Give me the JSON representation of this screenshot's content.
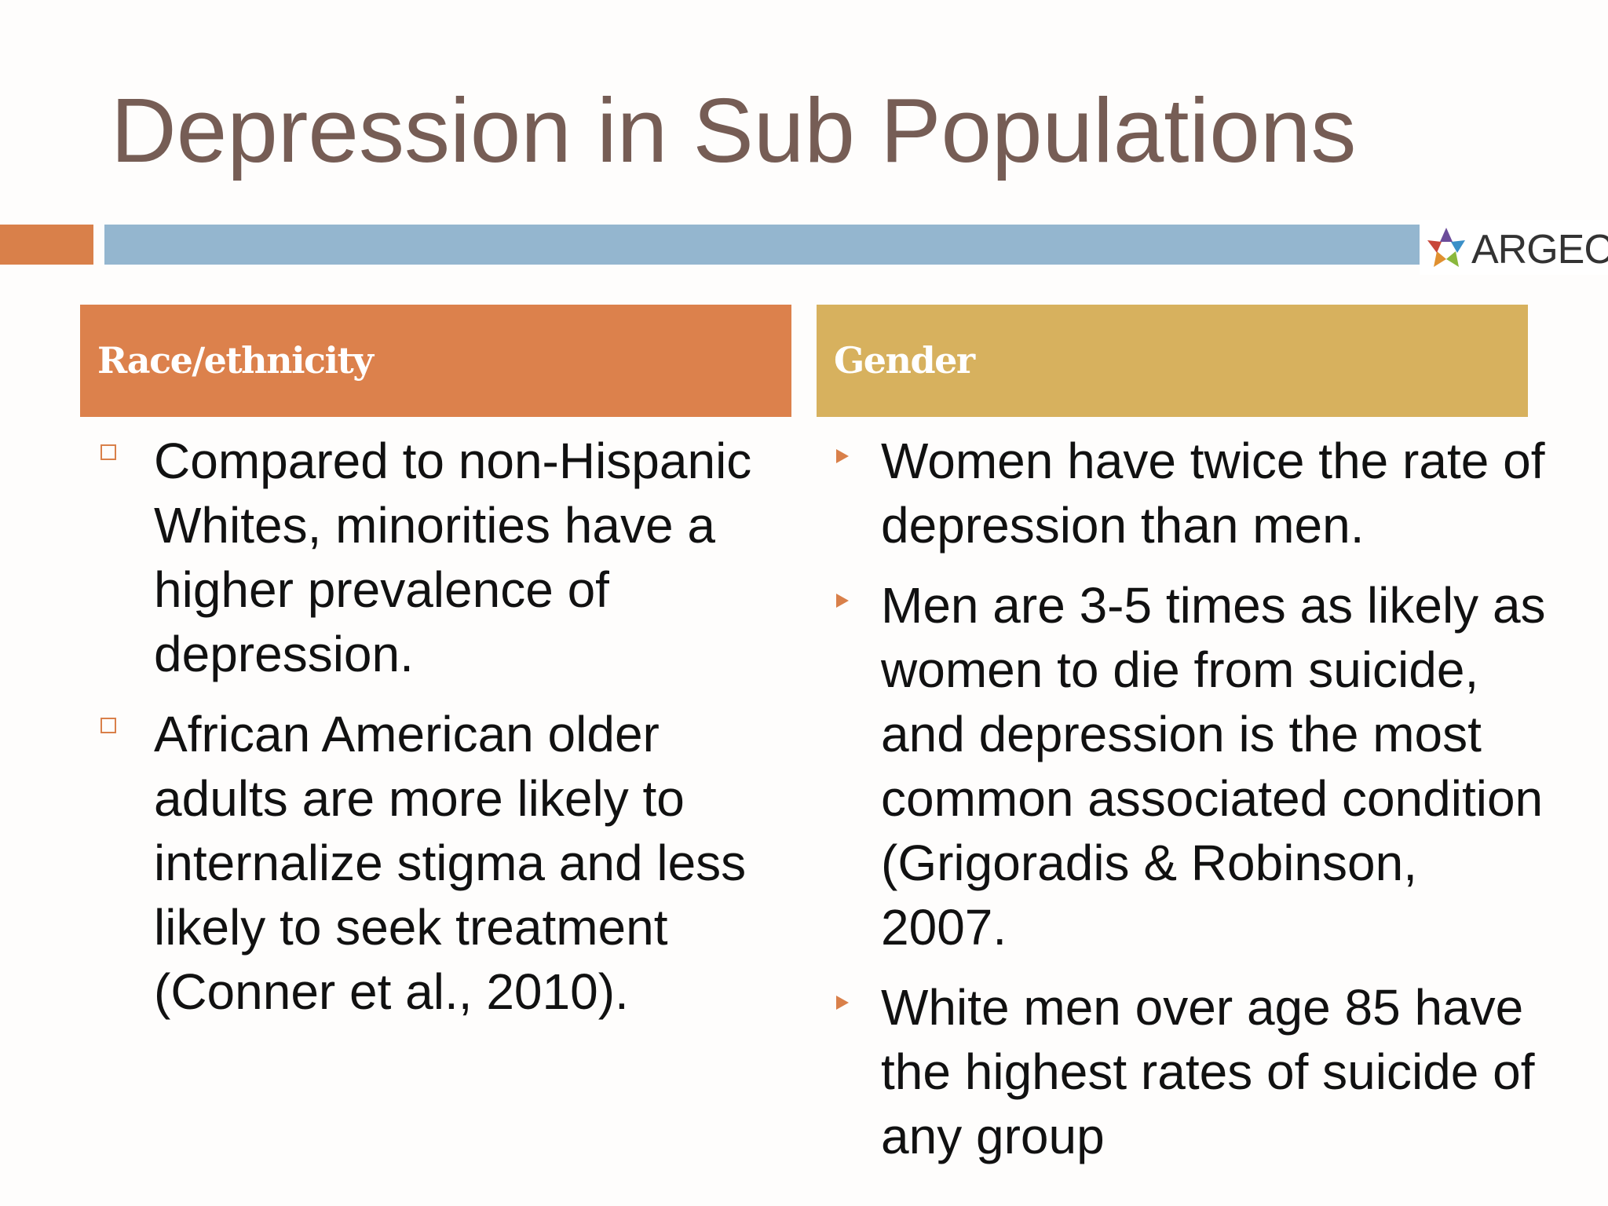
{
  "slide": {
    "title": "Depression in Sub Populations"
  },
  "logo": {
    "text": "ARGEC",
    "icon": "argec-star-logo-icon"
  },
  "colors": {
    "title": "#765d55",
    "accent_orange": "#d9804a",
    "accent_blue": "#94b6cf",
    "race_header": "#dc814c",
    "gender_header": "#d7b15e"
  },
  "columns": [
    {
      "header": "Race/ethnicity",
      "bullet_icon": "hollow-square-bullet-icon",
      "bullets": [
        "Compared to non-Hispanic Whites, minorities have a higher prevalence of depression.",
        "African American older adults are more likely to internalize stigma and less likely to seek treatment (Conner et al., 2010)."
      ]
    },
    {
      "header": "Gender",
      "bullet_icon": "triangle-arrow-bullet-icon",
      "bullets": [
        "Women have twice the rate of depression than men.",
        "Men are 3-5 times as likely as women to die from suicide, and depression is the most common associated condition (Grigoradis & Robinson, 2007.",
        "White men over age 85 have the highest rates of suicide of any group"
      ]
    }
  ]
}
